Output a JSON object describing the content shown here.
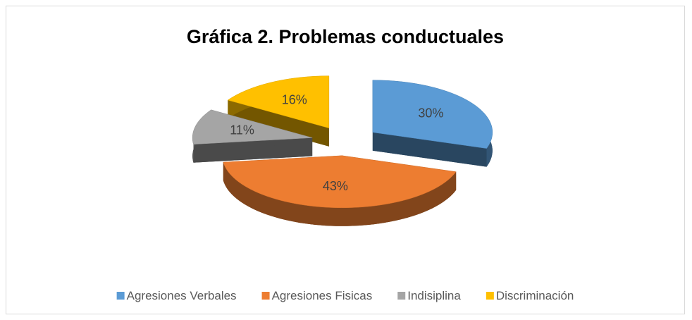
{
  "chart_data": {
    "type": "pie",
    "title": "Gráfica 2. Problemas conductuales",
    "categories": [
      "Agresiones Verbales",
      "Agresiones Fisicas",
      "Indisiplina",
      "Discriminación"
    ],
    "values": [
      30,
      43,
      11,
      16
    ],
    "value_labels": [
      "30%",
      "43%",
      "11%",
      "16%"
    ],
    "colors": [
      "#5b9bd5",
      "#ed7d31",
      "#a5a5a5",
      "#ffc000"
    ],
    "legend": "bottom"
  }
}
